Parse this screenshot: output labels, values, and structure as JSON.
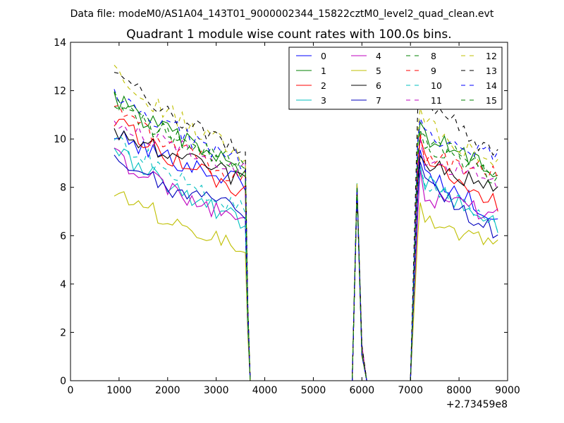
{
  "chart_data": {
    "type": "line",
    "suptitle": "Data file: modeM0/AS1A04_143T01_9000002344_15822cztM0_level2_quad_clean.evt",
    "title": "Quadrant 1 module wise count rates with 100.0s bins.",
    "xlabel": "",
    "ylabel": "",
    "x_offset_label": "+2.73459e8",
    "xlim": [
      0,
      9000
    ],
    "ylim": [
      0,
      14
    ],
    "xticks": [
      0,
      1000,
      2000,
      3000,
      4000,
      5000,
      6000,
      7000,
      8000,
      9000
    ],
    "yticks": [
      0,
      2,
      4,
      6,
      8,
      10,
      12,
      14
    ],
    "xtick_labels": [
      "0",
      "1000",
      "2000",
      "3000",
      "4000",
      "5000",
      "6000",
      "7000",
      "8000",
      "9000"
    ],
    "ytick_labels": [
      "0",
      "2",
      "4",
      "6",
      "8",
      "10",
      "12",
      "14"
    ],
    "grid": false,
    "legend_position": "top-right",
    "legend_columns": 4,
    "bin_size_s": 100,
    "segments": [
      {
        "start": 900,
        "end": 3600
      },
      {
        "start": 5800,
        "end": 6100
      },
      {
        "start": 7000,
        "end": 8800
      }
    ],
    "series": [
      {
        "name": "0",
        "color": "#0000ff",
        "dash": "solid",
        "level1": 10.2,
        "end1": 8.2,
        "level3": 8.6,
        "end3": 6.8
      },
      {
        "name": "1",
        "color": "#008000",
        "dash": "solid",
        "level1": 11.8,
        "end1": 8.7,
        "level3": 10.1,
        "end3": 8.7
      },
      {
        "name": "2",
        "color": "#ff0000",
        "dash": "solid",
        "level1": 10.9,
        "end1": 7.7,
        "level3": 9.0,
        "end3": 7.3
      },
      {
        "name": "3",
        "color": "#00bfbf",
        "dash": "solid",
        "level1": 9.7,
        "end1": 6.5,
        "level3": 8.2,
        "end3": 6.5
      },
      {
        "name": "4",
        "color": "#bf00bf",
        "dash": "solid",
        "level1": 9.4,
        "end1": 6.5,
        "level3": 7.6,
        "end3": 6.8
      },
      {
        "name": "5",
        "color": "#bfbf00",
        "dash": "solid",
        "level1": 7.9,
        "end1": 5.5,
        "level3": 6.6,
        "end3": 5.6
      },
      {
        "name": "6",
        "color": "#000000",
        "dash": "solid",
        "level1": 10.4,
        "end1": 8.3,
        "level3": 8.9,
        "end3": 7.9
      },
      {
        "name": "7",
        "color": "#0000bf",
        "dash": "solid",
        "level1": 9.0,
        "end1": 7.0,
        "level3": 8.2,
        "end3": 6.0
      },
      {
        "name": "8",
        "color": "#008000",
        "dash": "dashed",
        "level1": 11.5,
        "end1": 8.8,
        "level3": 9.8,
        "end3": 8.8
      },
      {
        "name": "9",
        "color": "#ff0000",
        "dash": "dashed",
        "level1": 11.2,
        "end1": 8.3,
        "level3": 9.3,
        "end3": 8.5
      },
      {
        "name": "10",
        "color": "#00bfbf",
        "dash": "dashed",
        "level1": 10.3,
        "end1": 7.0,
        "level3": 8.3,
        "end3": 6.4
      },
      {
        "name": "11",
        "color": "#bf00bf",
        "dash": "dashed",
        "level1": 10.8,
        "end1": 8.8,
        "level3": 9.0,
        "end3": 8.2
      },
      {
        "name": "12",
        "color": "#bfbf00",
        "dash": "dashed",
        "level1": 12.8,
        "end1": 9.3,
        "level3": 10.6,
        "end3": 8.8
      },
      {
        "name": "13",
        "color": "#000000",
        "dash": "dashed",
        "level1": 13.0,
        "end1": 9.3,
        "level3": 11.6,
        "end3": 9.3
      },
      {
        "name": "14",
        "color": "#0000ff",
        "dash": "dashed",
        "level1": 12.0,
        "end1": 9.0,
        "level3": 10.1,
        "end3": 9.3
      },
      {
        "name": "15",
        "color": "#008000",
        "dash": "dashed",
        "level1": 11.6,
        "end1": 8.7,
        "level3": 10.0,
        "end3": 8.4
      }
    ]
  }
}
